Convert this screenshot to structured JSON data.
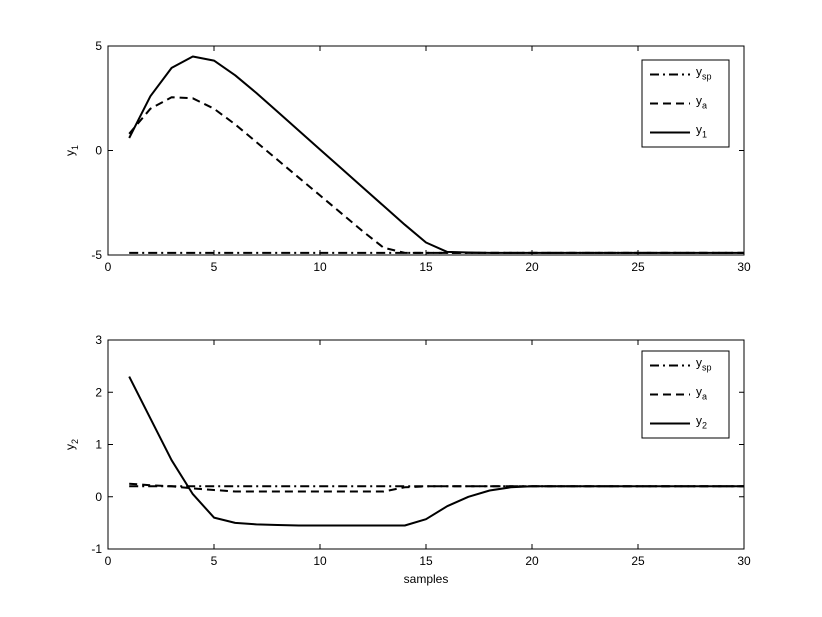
{
  "chart_data": [
    {
      "type": "line",
      "title": "",
      "xlabel": "",
      "ylabel": "y",
      "ylabel_sub": "1",
      "xlim": [
        0,
        30
      ],
      "ylim": [
        -5,
        5
      ],
      "xticks": [
        0,
        5,
        10,
        15,
        20,
        25,
        30
      ],
      "yticks": [
        -5,
        0,
        5
      ],
      "legend_position": "top-right",
      "grid": false,
      "series": [
        {
          "name": "y",
          "name_sub": "sp",
          "style": "dashdot",
          "x": [
            1,
            2,
            3,
            4,
            5,
            6,
            7,
            8,
            9,
            10,
            11,
            12,
            13,
            14,
            15,
            16,
            17,
            18,
            19,
            20,
            21,
            22,
            23,
            24,
            25,
            26,
            27,
            28,
            29,
            30
          ],
          "y": [
            -4.9,
            -4.9,
            -4.9,
            -4.9,
            -4.9,
            -4.9,
            -4.9,
            -4.9,
            -4.9,
            -4.9,
            -4.9,
            -4.9,
            -4.9,
            -4.9,
            -4.9,
            -4.9,
            -4.9,
            -4.9,
            -4.9,
            -4.9,
            -4.9,
            -4.9,
            -4.9,
            -4.9,
            -4.9,
            -4.9,
            -4.9,
            -4.9,
            -4.9,
            -4.9
          ]
        },
        {
          "name": "y",
          "name_sub": "a",
          "style": "dashed",
          "x": [
            1,
            2,
            3,
            4,
            5,
            6,
            7,
            8,
            9,
            10,
            11,
            12,
            13,
            14,
            15,
            16,
            17,
            18,
            19,
            20,
            21,
            22,
            23,
            24,
            25,
            26,
            27,
            28,
            29,
            30
          ],
          "y": [
            0.8,
            2.0,
            2.55,
            2.5,
            2.0,
            1.25,
            0.4,
            -0.45,
            -1.3,
            -2.15,
            -3.0,
            -3.85,
            -4.65,
            -4.9,
            -4.9,
            -4.9,
            -4.9,
            -4.9,
            -4.9,
            -4.9,
            -4.9,
            -4.9,
            -4.9,
            -4.9,
            -4.9,
            -4.9,
            -4.9,
            -4.9,
            -4.9,
            -4.9
          ]
        },
        {
          "name": "y",
          "name_sub": "1",
          "style": "solid",
          "x": [
            1,
            2,
            3,
            4,
            5,
            6,
            7,
            8,
            9,
            10,
            11,
            12,
            13,
            14,
            15,
            16,
            17,
            18,
            19,
            20,
            21,
            22,
            23,
            24,
            25,
            26,
            27,
            28,
            29,
            30
          ],
          "y": [
            0.6,
            2.6,
            3.95,
            4.5,
            4.3,
            3.6,
            2.75,
            1.85,
            0.95,
            0.05,
            -0.85,
            -1.75,
            -2.65,
            -3.55,
            -4.4,
            -4.85,
            -4.88,
            -4.9,
            -4.9,
            -4.9,
            -4.9,
            -4.9,
            -4.9,
            -4.9,
            -4.9,
            -4.9,
            -4.9,
            -4.9,
            -4.9,
            -4.9
          ]
        }
      ]
    },
    {
      "type": "line",
      "title": "",
      "xlabel": "samples",
      "ylabel": "y",
      "ylabel_sub": "2",
      "xlim": [
        0,
        30
      ],
      "ylim": [
        -1,
        3
      ],
      "xticks": [
        0,
        5,
        10,
        15,
        20,
        25,
        30
      ],
      "yticks": [
        -1,
        0,
        1,
        2,
        3
      ],
      "legend_position": "top-right",
      "grid": false,
      "series": [
        {
          "name": "y",
          "name_sub": "sp",
          "style": "dashdot",
          "x": [
            1,
            2,
            3,
            4,
            5,
            6,
            7,
            8,
            9,
            10,
            11,
            12,
            13,
            14,
            15,
            16,
            17,
            18,
            19,
            20,
            21,
            22,
            23,
            24,
            25,
            26,
            27,
            28,
            29,
            30
          ],
          "y": [
            0.2,
            0.2,
            0.2,
            0.2,
            0.2,
            0.2,
            0.2,
            0.2,
            0.2,
            0.2,
            0.2,
            0.2,
            0.2,
            0.2,
            0.2,
            0.2,
            0.2,
            0.2,
            0.2,
            0.2,
            0.2,
            0.2,
            0.2,
            0.2,
            0.2,
            0.2,
            0.2,
            0.2,
            0.2,
            0.2
          ]
        },
        {
          "name": "y",
          "name_sub": "a",
          "style": "dashed",
          "x": [
            1,
            2,
            3,
            4,
            5,
            6,
            7,
            8,
            9,
            10,
            11,
            12,
            13,
            14,
            15,
            16,
            17,
            18,
            19,
            20,
            21,
            22,
            23,
            24,
            25,
            26,
            27,
            28,
            29,
            30
          ],
          "y": [
            0.25,
            0.22,
            0.2,
            0.16,
            0.13,
            0.1,
            0.1,
            0.1,
            0.1,
            0.1,
            0.1,
            0.1,
            0.1,
            0.18,
            0.2,
            0.2,
            0.2,
            0.2,
            0.2,
            0.2,
            0.2,
            0.2,
            0.2,
            0.2,
            0.2,
            0.2,
            0.2,
            0.2,
            0.2,
            0.2
          ]
        },
        {
          "name": "y",
          "name_sub": "2",
          "style": "solid",
          "x": [
            1,
            2,
            3,
            4,
            5,
            6,
            7,
            8,
            9,
            10,
            11,
            12,
            13,
            14,
            15,
            16,
            17,
            18,
            19,
            20,
            21,
            22,
            23,
            24,
            25,
            26,
            27,
            28,
            29,
            30
          ],
          "y": [
            2.3,
            1.5,
            0.7,
            0.05,
            -0.4,
            -0.5,
            -0.53,
            -0.54,
            -0.55,
            -0.55,
            -0.55,
            -0.55,
            -0.55,
            -0.55,
            -0.43,
            -0.18,
            0.0,
            0.12,
            0.18,
            0.2,
            0.2,
            0.2,
            0.2,
            0.2,
            0.2,
            0.2,
            0.2,
            0.2,
            0.2,
            0.2
          ]
        }
      ]
    }
  ]
}
